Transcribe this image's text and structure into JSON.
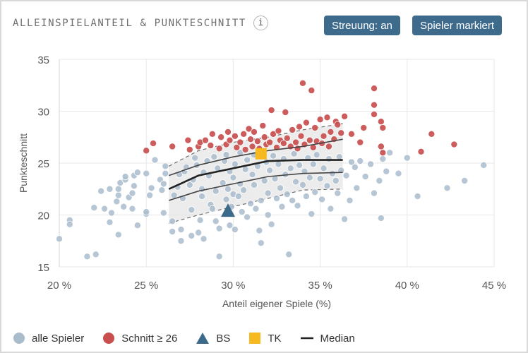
{
  "header": {
    "title": "ALLEINSPIELANTEIL & PUNKTESCHNITT",
    "info_label": "i"
  },
  "toolbar": {
    "streuung_label": "Streuung: an",
    "marker_label": "Spieler markiert"
  },
  "legend": {
    "all": "alle Spieler",
    "high": "Schnitt ≥ 26",
    "bs": "BS",
    "tk": "TK",
    "median": "Median"
  },
  "colors": {
    "all": "#a9bccc",
    "high": "#c94e4e",
    "bs": "#3b6a8a",
    "tk": "#f6b91f",
    "median": "#222222",
    "band": "#e6e6e6"
  },
  "chart_data": {
    "type": "scatter",
    "xlabel": "Anteil eigener Spiele (%)",
    "ylabel": "Punkteschnitt",
    "xlim": [
      20,
      45
    ],
    "ylim": [
      15,
      35
    ],
    "xticks": [
      20,
      25,
      30,
      35,
      40,
      45
    ],
    "xtick_labels": [
      "20 %",
      "25 %",
      "30 %",
      "35 %",
      "40 %",
      "45 %"
    ],
    "yticks": [
      15,
      20,
      25,
      30,
      35
    ],
    "grid": true,
    "legend_position": "bottom",
    "highlighted": [
      {
        "name": "BS",
        "x": 29.7,
        "y": 20.3,
        "marker": "triangle"
      },
      {
        "name": "TK",
        "x": 31.6,
        "y": 25.9,
        "marker": "square"
      }
    ],
    "median": {
      "x": [
        26.3,
        28.0,
        30.0,
        32.0,
        34.0,
        36.3
      ],
      "y": [
        22.5,
        23.8,
        24.5,
        25.2,
        25.3,
        25.3
      ]
    },
    "quartile_lower": {
      "x": [
        26.3,
        28.0,
        30.0,
        32.0,
        34.0,
        36.3
      ],
      "y": [
        21.4,
        22.3,
        23.0,
        23.7,
        24.0,
        24.1
      ]
    },
    "quartile_upper": {
      "x": [
        26.3,
        28.0,
        30.0,
        32.0,
        34.0,
        36.3
      ],
      "y": [
        23.8,
        24.8,
        25.6,
        26.2,
        26.6,
        27.3
      ]
    },
    "band_lower": {
      "x": [
        26.3,
        28.0,
        30.0,
        32.0,
        34.0,
        36.3
      ],
      "y": [
        19.2,
        20.0,
        20.8,
        21.6,
        22.4,
        22.5
      ]
    },
    "band_upper": {
      "x": [
        26.3,
        28.0,
        30.0,
        32.0,
        34.0,
        36.3
      ],
      "y": [
        24.7,
        26.2,
        27.0,
        27.5,
        28.2,
        28.8
      ]
    },
    "series": [
      {
        "key": "all",
        "points": [
          [
            20.0,
            17.7
          ],
          [
            20.6,
            19.5
          ],
          [
            20.6,
            19.1
          ],
          [
            21.6,
            16.0
          ],
          [
            22.1,
            16.2
          ],
          [
            22.0,
            20.7
          ],
          [
            22.4,
            22.3
          ],
          [
            22.6,
            20.6
          ],
          [
            22.9,
            19.3
          ],
          [
            22.9,
            22.5
          ],
          [
            23.0,
            20.2
          ],
          [
            23.3,
            21.3
          ],
          [
            23.4,
            21.9
          ],
          [
            23.4,
            22.5
          ],
          [
            23.5,
            23.1
          ],
          [
            23.4,
            18.1
          ],
          [
            23.7,
            20.8
          ],
          [
            23.8,
            23.4
          ],
          [
            23.8,
            23.7
          ],
          [
            24.0,
            21.7
          ],
          [
            24.2,
            20.6
          ],
          [
            24.2,
            22.1
          ],
          [
            24.3,
            22.8
          ],
          [
            24.3,
            23.8
          ],
          [
            24.5,
            19.0
          ],
          [
            24.5,
            24.1
          ],
          [
            25.0,
            20.1
          ],
          [
            25.0,
            20.3
          ],
          [
            25.0,
            24.0
          ],
          [
            25.2,
            21.9
          ],
          [
            25.3,
            22.6
          ],
          [
            25.5,
            25.3
          ],
          [
            25.8,
            23.4
          ],
          [
            25.9,
            22.4
          ],
          [
            26.0,
            23.0
          ],
          [
            26.1,
            24.0
          ],
          [
            26.1,
            24.7
          ],
          [
            26.0,
            20.2
          ],
          [
            26.5,
            19.4
          ],
          [
            26.5,
            18.4
          ],
          [
            26.6,
            21.9
          ],
          [
            26.8,
            22.7
          ],
          [
            26.9,
            23.9
          ],
          [
            27.0,
            17.5
          ],
          [
            27.0,
            18.6
          ],
          [
            27.1,
            21.6
          ],
          [
            27.2,
            24.2
          ],
          [
            27.3,
            24.6
          ],
          [
            27.5,
            22.9
          ],
          [
            27.6,
            20.5
          ],
          [
            27.6,
            18.0
          ],
          [
            27.7,
            23.4
          ],
          [
            27.8,
            25.5
          ],
          [
            27.9,
            24.8
          ],
          [
            28.0,
            18.3
          ],
          [
            28.1,
            19.5
          ],
          [
            28.2,
            21.8
          ],
          [
            28.2,
            22.5
          ],
          [
            28.3,
            24.1
          ],
          [
            28.3,
            17.7
          ],
          [
            28.5,
            25.2
          ],
          [
            28.6,
            23.8
          ],
          [
            28.7,
            21.0
          ],
          [
            28.8,
            20.6
          ],
          [
            28.9,
            25.6
          ],
          [
            29.0,
            22.3
          ],
          [
            29.1,
            24.5
          ],
          [
            29.0,
            19.4
          ],
          [
            29.2,
            18.7
          ],
          [
            29.2,
            16.0
          ],
          [
            29.4,
            23.1
          ],
          [
            29.5,
            25.2
          ],
          [
            29.6,
            21.5
          ],
          [
            29.6,
            25.8
          ],
          [
            29.7,
            22.5
          ],
          [
            29.8,
            19.0
          ],
          [
            29.8,
            24.2
          ],
          [
            29.9,
            20.8
          ],
          [
            30.0,
            22.0
          ],
          [
            30.0,
            23.6
          ],
          [
            30.1,
            24.9
          ],
          [
            30.1,
            18.6
          ],
          [
            30.3,
            21.8
          ],
          [
            30.4,
            26.0
          ],
          [
            30.4,
            23.0
          ],
          [
            30.5,
            20.3
          ],
          [
            30.6,
            22.4
          ],
          [
            30.7,
            24.4
          ],
          [
            30.8,
            19.8
          ],
          [
            30.8,
            25.3
          ],
          [
            31.0,
            21.1
          ],
          [
            31.1,
            23.9
          ],
          [
            31.2,
            25.8
          ],
          [
            31.2,
            22.9
          ],
          [
            31.3,
            20.6
          ],
          [
            31.4,
            24.7
          ],
          [
            31.5,
            18.5
          ],
          [
            31.6,
            21.4
          ],
          [
            31.6,
            17.3
          ],
          [
            31.8,
            23.3
          ],
          [
            31.9,
            25.1
          ],
          [
            32.0,
            22.1
          ],
          [
            32.0,
            20.0
          ],
          [
            32.1,
            24.3
          ],
          [
            32.2,
            19.1
          ],
          [
            32.3,
            25.7
          ],
          [
            32.4,
            23.5
          ],
          [
            32.5,
            21.6
          ],
          [
            32.6,
            24.9
          ],
          [
            32.7,
            22.6
          ],
          [
            32.8,
            20.8
          ],
          [
            32.9,
            25.4
          ],
          [
            33.0,
            23.9
          ],
          [
            33.1,
            22.0
          ],
          [
            33.2,
            16.2
          ],
          [
            33.3,
            24.5
          ],
          [
            33.4,
            21.4
          ],
          [
            33.5,
            25.9
          ],
          [
            33.6,
            23.2
          ],
          [
            33.7,
            20.9
          ],
          [
            33.8,
            24.8
          ],
          [
            34.0,
            22.9
          ],
          [
            34.1,
            24.2
          ],
          [
            34.2,
            21.8
          ],
          [
            34.3,
            25.5
          ],
          [
            34.4,
            23.6
          ],
          [
            34.5,
            20.1
          ],
          [
            34.6,
            24.9
          ],
          [
            34.7,
            22.2
          ],
          [
            34.8,
            25.8
          ],
          [
            35.0,
            23.5
          ],
          [
            35.1,
            21.5
          ],
          [
            35.2,
            24.5
          ],
          [
            35.4,
            22.8
          ],
          [
            35.5,
            25.4
          ],
          [
            35.6,
            20.6
          ],
          [
            35.7,
            24.0
          ],
          [
            35.9,
            23.3
          ],
          [
            36.0,
            22.1
          ],
          [
            36.1,
            25.6
          ],
          [
            36.2,
            24.3
          ],
          [
            36.4,
            19.6
          ],
          [
            36.5,
            23.8
          ],
          [
            36.7,
            21.4
          ],
          [
            36.8,
            25.1
          ],
          [
            37.0,
            24.6
          ],
          [
            37.1,
            22.6
          ],
          [
            37.3,
            25.2
          ],
          [
            37.6,
            23.7
          ],
          [
            37.9,
            24.9
          ],
          [
            38.1,
            22.1
          ],
          [
            38.4,
            23.3
          ],
          [
            38.5,
            19.7
          ],
          [
            38.6,
            25.4
          ],
          [
            38.8,
            24.2
          ],
          [
            39.0,
            26.0
          ],
          [
            39.5,
            24.0
          ],
          [
            40.0,
            25.5
          ],
          [
            40.6,
            21.8
          ],
          [
            42.3,
            22.6
          ],
          [
            43.3,
            23.3
          ],
          [
            44.4,
            24.8
          ]
        ]
      },
      {
        "key": "high",
        "points": [
          [
            25.0,
            26.2
          ],
          [
            25.4,
            26.9
          ],
          [
            26.5,
            26.6
          ],
          [
            27.4,
            27.2
          ],
          [
            27.5,
            26.3
          ],
          [
            28.0,
            26.6
          ],
          [
            28.1,
            27.0
          ],
          [
            28.4,
            27.2
          ],
          [
            28.7,
            26.7
          ],
          [
            28.8,
            27.8
          ],
          [
            29.2,
            26.4
          ],
          [
            29.3,
            27.5
          ],
          [
            29.6,
            26.8
          ],
          [
            29.7,
            28.0
          ],
          [
            29.8,
            27.2
          ],
          [
            30.1,
            27.6
          ],
          [
            30.2,
            26.5
          ],
          [
            30.4,
            27.0
          ],
          [
            30.6,
            27.8
          ],
          [
            30.7,
            26.3
          ],
          [
            30.9,
            28.3
          ],
          [
            31.0,
            27.3
          ],
          [
            31.1,
            26.6
          ],
          [
            31.2,
            28.0
          ],
          [
            31.4,
            27.1
          ],
          [
            31.5,
            26.4
          ],
          [
            31.7,
            28.6
          ],
          [
            31.8,
            27.5
          ],
          [
            31.9,
            26.8
          ],
          [
            32.1,
            27.0
          ],
          [
            32.2,
            30.1
          ],
          [
            32.3,
            27.8
          ],
          [
            32.5,
            26.5
          ],
          [
            32.6,
            28.1
          ],
          [
            32.7,
            27.2
          ],
          [
            32.9,
            26.9
          ],
          [
            33.0,
            29.9
          ],
          [
            33.1,
            27.4
          ],
          [
            33.3,
            26.6
          ],
          [
            33.4,
            28.2
          ],
          [
            33.6,
            27.0
          ],
          [
            33.7,
            26.4
          ],
          [
            33.8,
            28.5
          ],
          [
            33.9,
            27.6
          ],
          [
            34.0,
            32.7
          ],
          [
            34.1,
            26.8
          ],
          [
            34.2,
            28.9
          ],
          [
            34.4,
            27.2
          ],
          [
            34.5,
            32.0
          ],
          [
            34.6,
            26.5
          ],
          [
            34.7,
            28.4
          ],
          [
            34.8,
            27.1
          ],
          [
            35.0,
            29.2
          ],
          [
            35.1,
            26.9
          ],
          [
            35.2,
            27.6
          ],
          [
            35.4,
            29.4
          ],
          [
            35.5,
            26.6
          ],
          [
            35.6,
            28.0
          ],
          [
            35.8,
            27.3
          ],
          [
            35.9,
            29.0
          ],
          [
            36.0,
            28.7
          ],
          [
            36.2,
            27.9
          ],
          [
            36.4,
            29.5
          ],
          [
            36.8,
            27.8
          ],
          [
            37.3,
            27.0
          ],
          [
            37.5,
            28.4
          ],
          [
            38.1,
            32.2
          ],
          [
            38.1,
            30.6
          ],
          [
            38.1,
            29.7
          ],
          [
            38.5,
            29.0
          ],
          [
            38.6,
            28.4
          ],
          [
            38.5,
            26.6
          ],
          [
            38.6,
            26.0
          ],
          [
            40.8,
            26.1
          ],
          [
            41.4,
            27.8
          ],
          [
            42.7,
            26.8
          ]
        ]
      }
    ]
  }
}
